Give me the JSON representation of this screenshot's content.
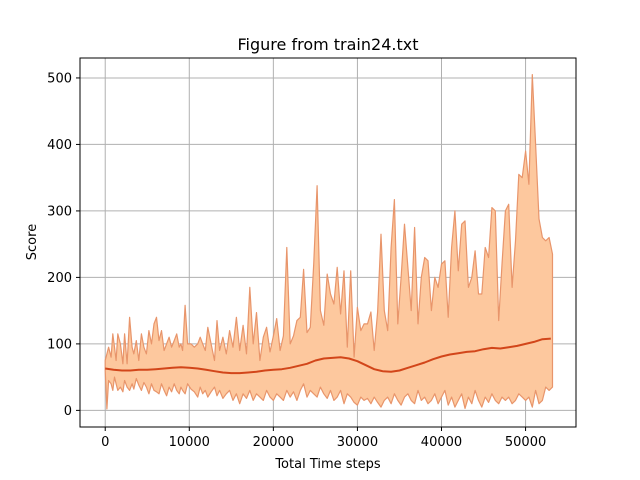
{
  "chart_data": {
    "type": "line",
    "title": "Figure from train24.txt",
    "xlabel": "Total Time steps",
    "ylabel": "Score",
    "xlim": [
      -3000,
      56000
    ],
    "ylim": [
      -25,
      530
    ],
    "xticks": [
      0,
      10000,
      20000,
      30000,
      40000,
      50000
    ],
    "yticks": [
      0,
      100,
      200,
      300,
      400,
      500
    ],
    "xtick_labels": [
      "0",
      "10000",
      "20000",
      "30000",
      "40000",
      "50000"
    ],
    "ytick_labels": [
      "0",
      "100",
      "200",
      "300",
      "400",
      "500"
    ],
    "grid": true,
    "legend": "none",
    "colors": {
      "band_fill": "#fdc89e",
      "band_edge": "#e8956b",
      "mean_line": "#d2461a"
    },
    "series": [
      {
        "role": "max",
        "x": [
          0,
          200,
          400,
          700,
          900,
          1100,
          1300,
          1500,
          1800,
          2100,
          2300,
          2600,
          2900,
          3200,
          3400,
          3700,
          4000,
          4300,
          4600,
          4900,
          5200,
          5500,
          5800,
          6100,
          6400,
          6700,
          7000,
          7300,
          7600,
          7900,
          8200,
          8500,
          8800,
          9000,
          9200,
          9500,
          9800,
          10200,
          10600,
          11000,
          11300,
          11600,
          11900,
          12200,
          12600,
          13000,
          13300,
          13600,
          14000,
          14400,
          14800,
          15200,
          15600,
          16000,
          16400,
          16800,
          17200,
          17600,
          18000,
          18400,
          18800,
          19200,
          19600,
          20000,
          20400,
          20800,
          21200,
          21600,
          22000,
          22400,
          22800,
          23200,
          23600,
          24000,
          24400,
          24800,
          25200,
          25600,
          26000,
          26400,
          26800,
          27200,
          27600,
          28000,
          28400,
          28800,
          29200,
          29600,
          30000,
          30400,
          30800,
          31200,
          31600,
          32000,
          32400,
          32800,
          33200,
          33600,
          34000,
          34400,
          34800,
          35200,
          35600,
          36000,
          36400,
          36800,
          37200,
          37600,
          38000,
          38400,
          38800,
          39200,
          39600,
          40000,
          40400,
          40800,
          41200,
          41600,
          42000,
          42400,
          42800,
          43200,
          43600,
          44000,
          44400,
          44800,
          45200,
          45600,
          46000,
          46400,
          46800,
          47200,
          47600,
          48000,
          48400,
          48800,
          49200,
          49600,
          50000,
          50400,
          50800,
          51200,
          51600,
          52000,
          52400,
          52800,
          53200
        ],
        "values": [
          75,
          85,
          95,
          80,
          115,
          95,
          75,
          115,
          100,
          70,
          115,
          70,
          140,
          95,
          85,
          105,
          75,
          115,
          95,
          85,
          120,
          100,
          130,
          140,
          105,
          120,
          90,
          100,
          110,
          95,
          105,
          115,
          95,
          100,
          90,
          158,
          100,
          100,
          95,
          100,
          110,
          100,
          90,
          125,
          100,
          75,
          135,
          90,
          110,
          85,
          120,
          95,
          140,
          90,
          128,
          85,
          185,
          100,
          147,
          75,
          110,
          125,
          88,
          112,
          138,
          90,
          112,
          245,
          100,
          112,
          135,
          140,
          212,
          117,
          125,
          220,
          338,
          150,
          128,
          205,
          175,
          160,
          215,
          145,
          210,
          95,
          210,
          80,
          155,
          120,
          130,
          130,
          148,
          90,
          148,
          265,
          150,
          120,
          245,
          317,
          130,
          200,
          280,
          215,
          150,
          275,
          130,
          200,
          230,
          225,
          150,
          200,
          185,
          220,
          225,
          140,
          245,
          300,
          210,
          280,
          285,
          185,
          200,
          240,
          175,
          175,
          245,
          230,
          305,
          300,
          135,
          220,
          300,
          310,
          185,
          255,
          355,
          350,
          390,
          340,
          505,
          400,
          288,
          260,
          255,
          260,
          235
        ]
      },
      {
        "role": "min",
        "x": [
          0,
          200,
          400,
          700,
          900,
          1100,
          1300,
          1500,
          1800,
          2100,
          2300,
          2600,
          2900,
          3200,
          3400,
          3700,
          4000,
          4300,
          4600,
          4900,
          5200,
          5500,
          5800,
          6100,
          6400,
          6700,
          7000,
          7300,
          7600,
          7900,
          8200,
          8500,
          8800,
          9000,
          9200,
          9500,
          9800,
          10200,
          10600,
          11000,
          11300,
          11600,
          11900,
          12200,
          12600,
          13000,
          13300,
          13600,
          14000,
          14400,
          14800,
          15200,
          15600,
          16000,
          16400,
          16800,
          17200,
          17600,
          18000,
          18400,
          18800,
          19200,
          19600,
          20000,
          20400,
          20800,
          21200,
          21600,
          22000,
          22400,
          22800,
          23200,
          23600,
          24000,
          24400,
          24800,
          25200,
          25600,
          26000,
          26400,
          26800,
          27200,
          27600,
          28000,
          28400,
          28800,
          29200,
          29600,
          30000,
          30400,
          30800,
          31200,
          31600,
          32000,
          32400,
          32800,
          33200,
          33600,
          34000,
          34400,
          34800,
          35200,
          35600,
          36000,
          36400,
          36800,
          37200,
          37600,
          38000,
          38400,
          38800,
          39200,
          39600,
          40000,
          40400,
          40800,
          41200,
          41600,
          42000,
          42400,
          42800,
          43200,
          43600,
          44000,
          44400,
          44800,
          45200,
          45600,
          46000,
          46400,
          46800,
          47200,
          47600,
          48000,
          48400,
          48800,
          49200,
          49600,
          50000,
          50400,
          50800,
          51200,
          51600,
          52000,
          52400,
          52800,
          53200
        ],
        "values": [
          60,
          2,
          45,
          40,
          30,
          50,
          40,
          30,
          35,
          28,
          45,
          35,
          30,
          40,
          32,
          48,
          38,
          30,
          42,
          35,
          25,
          40,
          30,
          28,
          25,
          40,
          30,
          22,
          35,
          28,
          40,
          30,
          25,
          35,
          30,
          25,
          40,
          32,
          28,
          20,
          35,
          25,
          30,
          20,
          28,
          35,
          22,
          30,
          18,
          25,
          30,
          15,
          25,
          10,
          25,
          18,
          30,
          15,
          25,
          20,
          15,
          30,
          20,
          15,
          25,
          20,
          15,
          30,
          20,
          28,
          15,
          30,
          40,
          20,
          30,
          25,
          20,
          35,
          25,
          18,
          30,
          15,
          20,
          30,
          10,
          25,
          20,
          12,
          8,
          20,
          15,
          18,
          10,
          20,
          12,
          5,
          15,
          20,
          10,
          25,
          15,
          8,
          20,
          25,
          15,
          10,
          30,
          15,
          20,
          10,
          15,
          25,
          10,
          20,
          30,
          8,
          20,
          5,
          15,
          25,
          3,
          20,
          10,
          30,
          15,
          5,
          20,
          12,
          25,
          15,
          10,
          20,
          15,
          20,
          10,
          15,
          25,
          20,
          15,
          20,
          5,
          30,
          10,
          15,
          35,
          30,
          35
        ]
      },
      {
        "role": "mean",
        "x": [
          0,
          1000,
          2000,
          3000,
          4000,
          5000,
          6000,
          7000,
          8000,
          9000,
          10000,
          11000,
          12000,
          13000,
          14000,
          15000,
          16000,
          17000,
          18000,
          19000,
          20000,
          21000,
          22000,
          23000,
          24000,
          25000,
          26000,
          27000,
          28000,
          29000,
          30000,
          31000,
          32000,
          33000,
          34000,
          35000,
          36000,
          37000,
          38000,
          39000,
          40000,
          41000,
          42000,
          43000,
          44000,
          45000,
          46000,
          47000,
          48000,
          49000,
          50000,
          51000,
          52000,
          53000
        ],
        "values": [
          63,
          61,
          60,
          60,
          61,
          61,
          62,
          63,
          64,
          65,
          64,
          63,
          61,
          59,
          57,
          56,
          56,
          57,
          58,
          60,
          61,
          62,
          64,
          67,
          70,
          75,
          78,
          79,
          80,
          78,
          74,
          68,
          62,
          59,
          58,
          60,
          64,
          68,
          72,
          77,
          81,
          84,
          86,
          88,
          89,
          92,
          94,
          93,
          95,
          97,
          100,
          103,
          107,
          108
        ]
      }
    ]
  }
}
